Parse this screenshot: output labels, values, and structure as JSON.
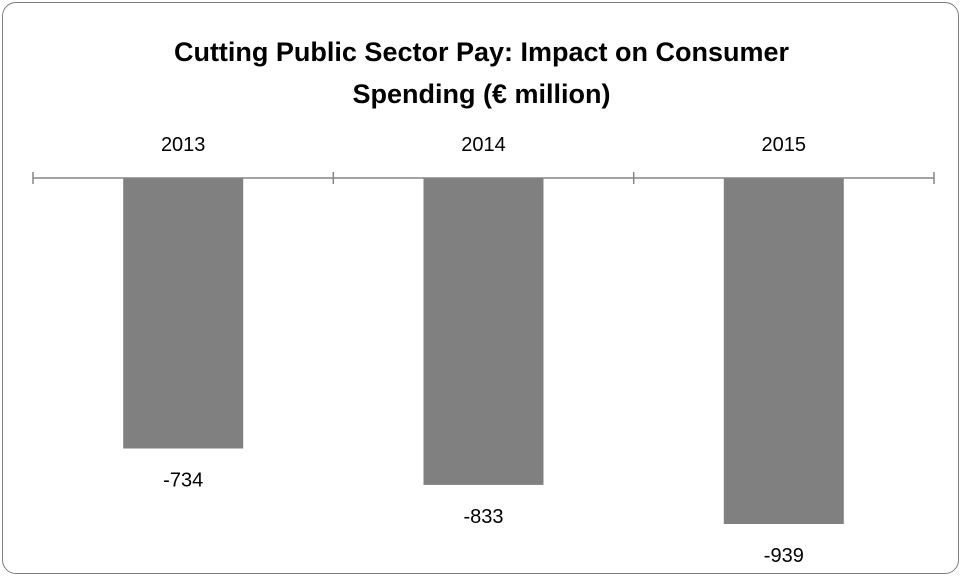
{
  "chart_data": {
    "type": "bar",
    "title_lines": [
      "Cutting Public Sector Pay:  Impact on Consumer",
      "Spending (€ million)"
    ],
    "title": "Cutting Public Sector Pay:  Impact on Consumer Spending (€ million)",
    "categories": [
      "2013",
      "2014",
      "2015"
    ],
    "values": [
      -734,
      -833,
      -939
    ],
    "data_labels": [
      "-734",
      "-833",
      "-939"
    ],
    "xlabel": "",
    "ylabel": "",
    "ylim": [
      -939,
      0
    ],
    "x_axis_position": "top",
    "grid": false,
    "legend": "none",
    "bar_color": "#808080",
    "axis_color": "#868686"
  }
}
